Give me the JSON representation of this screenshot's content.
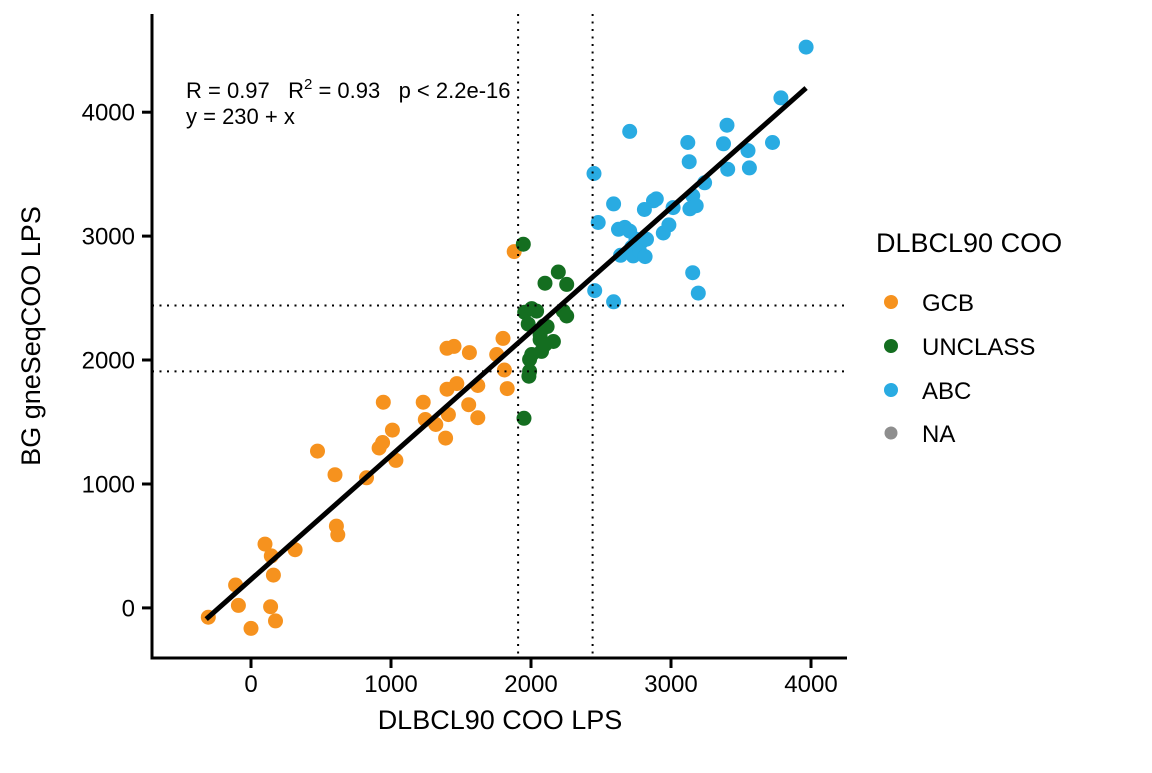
{
  "chart_data": {
    "type": "scatter",
    "title": "",
    "xlabel": "DLBCL90 COO LPS",
    "ylabel": "BG gneSeqCOO LPS",
    "xlim": [
      -707,
      4257
    ],
    "ylim": [
      -404,
      4792
    ],
    "x_ticks": [
      0,
      1000,
      2000,
      3000,
      4000
    ],
    "y_ticks": [
      0,
      1000,
      2000,
      3000,
      4000
    ],
    "grid": false,
    "legend_position": "right",
    "legend_title": "DLBCL90 COO",
    "annotations": {
      "stats_part1": "R = 0.97   R",
      "stats_sup": "2",
      "stats_part2": " = 0.93   p < 2.2e-16",
      "equation": "y = 230 + x"
    },
    "regression_line": {
      "slope": 1,
      "intercept": 230,
      "x_start": -320,
      "x_end": 3965,
      "color": "#000000"
    },
    "threshold_lines": {
      "style": "dotted",
      "color": "#000000",
      "x_values": [
        1908,
        2440
      ],
      "y_values": [
        1908,
        2440
      ]
    },
    "series": [
      {
        "name": "GCB",
        "color": "#F6921E",
        "points": [
          [
            -305,
            -75
          ],
          [
            -110,
            185
          ],
          [
            -90,
            20
          ],
          [
            0,
            -165
          ],
          [
            100,
            515
          ],
          [
            140,
            10
          ],
          [
            145,
            420
          ],
          [
            160,
            265
          ],
          [
            175,
            -105
          ],
          [
            315,
            470
          ],
          [
            475,
            1265
          ],
          [
            600,
            1075
          ],
          [
            610,
            660
          ],
          [
            620,
            590
          ],
          [
            825,
            1050
          ],
          [
            915,
            1290
          ],
          [
            940,
            1335
          ],
          [
            945,
            1660
          ],
          [
            1010,
            1435
          ],
          [
            1035,
            1190
          ],
          [
            1230,
            1660
          ],
          [
            1245,
            1520
          ],
          [
            1320,
            1480
          ],
          [
            1390,
            1370
          ],
          [
            1400,
            1765
          ],
          [
            1400,
            2095
          ],
          [
            1410,
            1560
          ],
          [
            1450,
            2110
          ],
          [
            1470,
            1810
          ],
          [
            1555,
            1640
          ],
          [
            1560,
            2060
          ],
          [
            1620,
            1535
          ],
          [
            1620,
            1795
          ],
          [
            1755,
            2045
          ],
          [
            1800,
            2175
          ],
          [
            1810,
            1920
          ],
          [
            1830,
            1770
          ],
          [
            1880,
            2875
          ]
        ]
      },
      {
        "name": "UNCLASS",
        "color": "#146E20",
        "points": [
          [
            1945,
            2935
          ],
          [
            1950,
            1530
          ],
          [
            1955,
            2385
          ],
          [
            1980,
            2290
          ],
          [
            1985,
            1870
          ],
          [
            1990,
            2005
          ],
          [
            1990,
            1910
          ],
          [
            2005,
            2415
          ],
          [
            2005,
            2045
          ],
          [
            2040,
            2395
          ],
          [
            2065,
            2205
          ],
          [
            2065,
            2165
          ],
          [
            2075,
            2070
          ],
          [
            2090,
            2140
          ],
          [
            2090,
            2275
          ],
          [
            2100,
            2620
          ],
          [
            2100,
            2125
          ],
          [
            2115,
            2270
          ],
          [
            2160,
            2150
          ],
          [
            2195,
            2710
          ],
          [
            2230,
            2395
          ],
          [
            2255,
            2610
          ],
          [
            2255,
            2355
          ]
        ]
      },
      {
        "name": "ABC",
        "color": "#29ABE2",
        "points": [
          [
            2450,
            3505
          ],
          [
            2455,
            2560
          ],
          [
            2480,
            3110
          ],
          [
            2590,
            2470
          ],
          [
            2590,
            3260
          ],
          [
            2625,
            3055
          ],
          [
            2640,
            2845
          ],
          [
            2670,
            3070
          ],
          [
            2705,
            3845
          ],
          [
            2705,
            3040
          ],
          [
            2720,
            2910
          ],
          [
            2730,
            2840
          ],
          [
            2750,
            2975
          ],
          [
            2775,
            2880
          ],
          [
            2790,
            2955
          ],
          [
            2810,
            3215
          ],
          [
            2815,
            2835
          ],
          [
            2825,
            2975
          ],
          [
            2875,
            3285
          ],
          [
            2895,
            3300
          ],
          [
            2945,
            3025
          ],
          [
            2985,
            3090
          ],
          [
            3015,
            3230
          ],
          [
            3120,
            3755
          ],
          [
            3130,
            3600
          ],
          [
            3135,
            3220
          ],
          [
            3155,
            3325
          ],
          [
            3155,
            2705
          ],
          [
            3180,
            3245
          ],
          [
            3195,
            2540
          ],
          [
            3240,
            3430
          ],
          [
            3375,
            3745
          ],
          [
            3400,
            3895
          ],
          [
            3405,
            3540
          ],
          [
            3550,
            3690
          ],
          [
            3560,
            3550
          ],
          [
            3725,
            3755
          ],
          [
            3785,
            4115
          ],
          [
            3965,
            4525
          ]
        ]
      },
      {
        "name": "NA",
        "color": "#8E8E8E",
        "points": []
      }
    ]
  }
}
